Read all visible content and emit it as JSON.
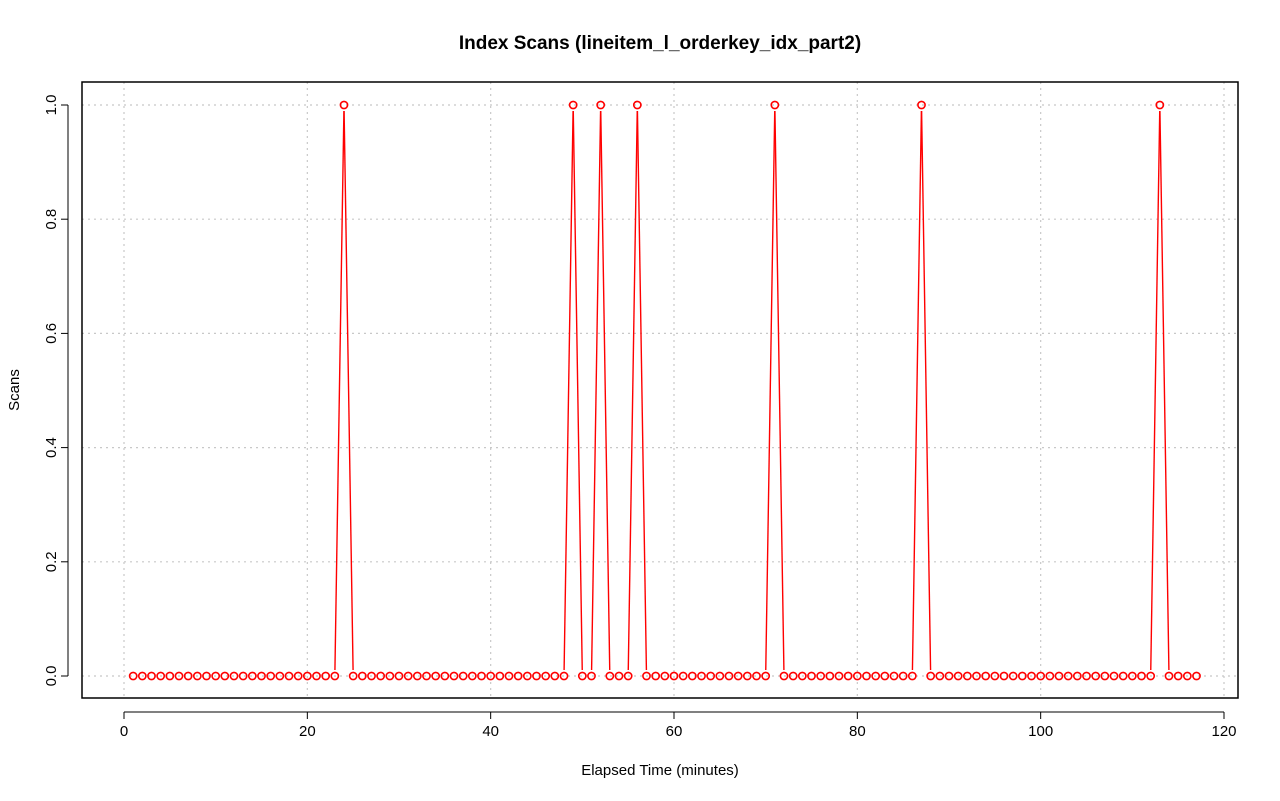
{
  "chart_data": {
    "type": "line",
    "title": "Index Scans (lineitem_l_orderkey_idx_part2)",
    "xlabel": "Elapsed Time (minutes)",
    "ylabel": "Scans",
    "xlim": [
      0,
      120
    ],
    "ylim": [
      0,
      1
    ],
    "x_ticks": [
      "0",
      "20",
      "40",
      "60",
      "80",
      "100",
      "120"
    ],
    "y_ticks": [
      "0.0",
      "0.2",
      "0.4",
      "0.6",
      "0.8",
      "1.0"
    ],
    "grid": true,
    "legend": "none",
    "series_color": "#ff0000",
    "x_start": 1,
    "x_end": 117,
    "spike_x": [
      24,
      49,
      52,
      56,
      71,
      87,
      113
    ],
    "baseline_value": 0,
    "spike_value": 1
  }
}
